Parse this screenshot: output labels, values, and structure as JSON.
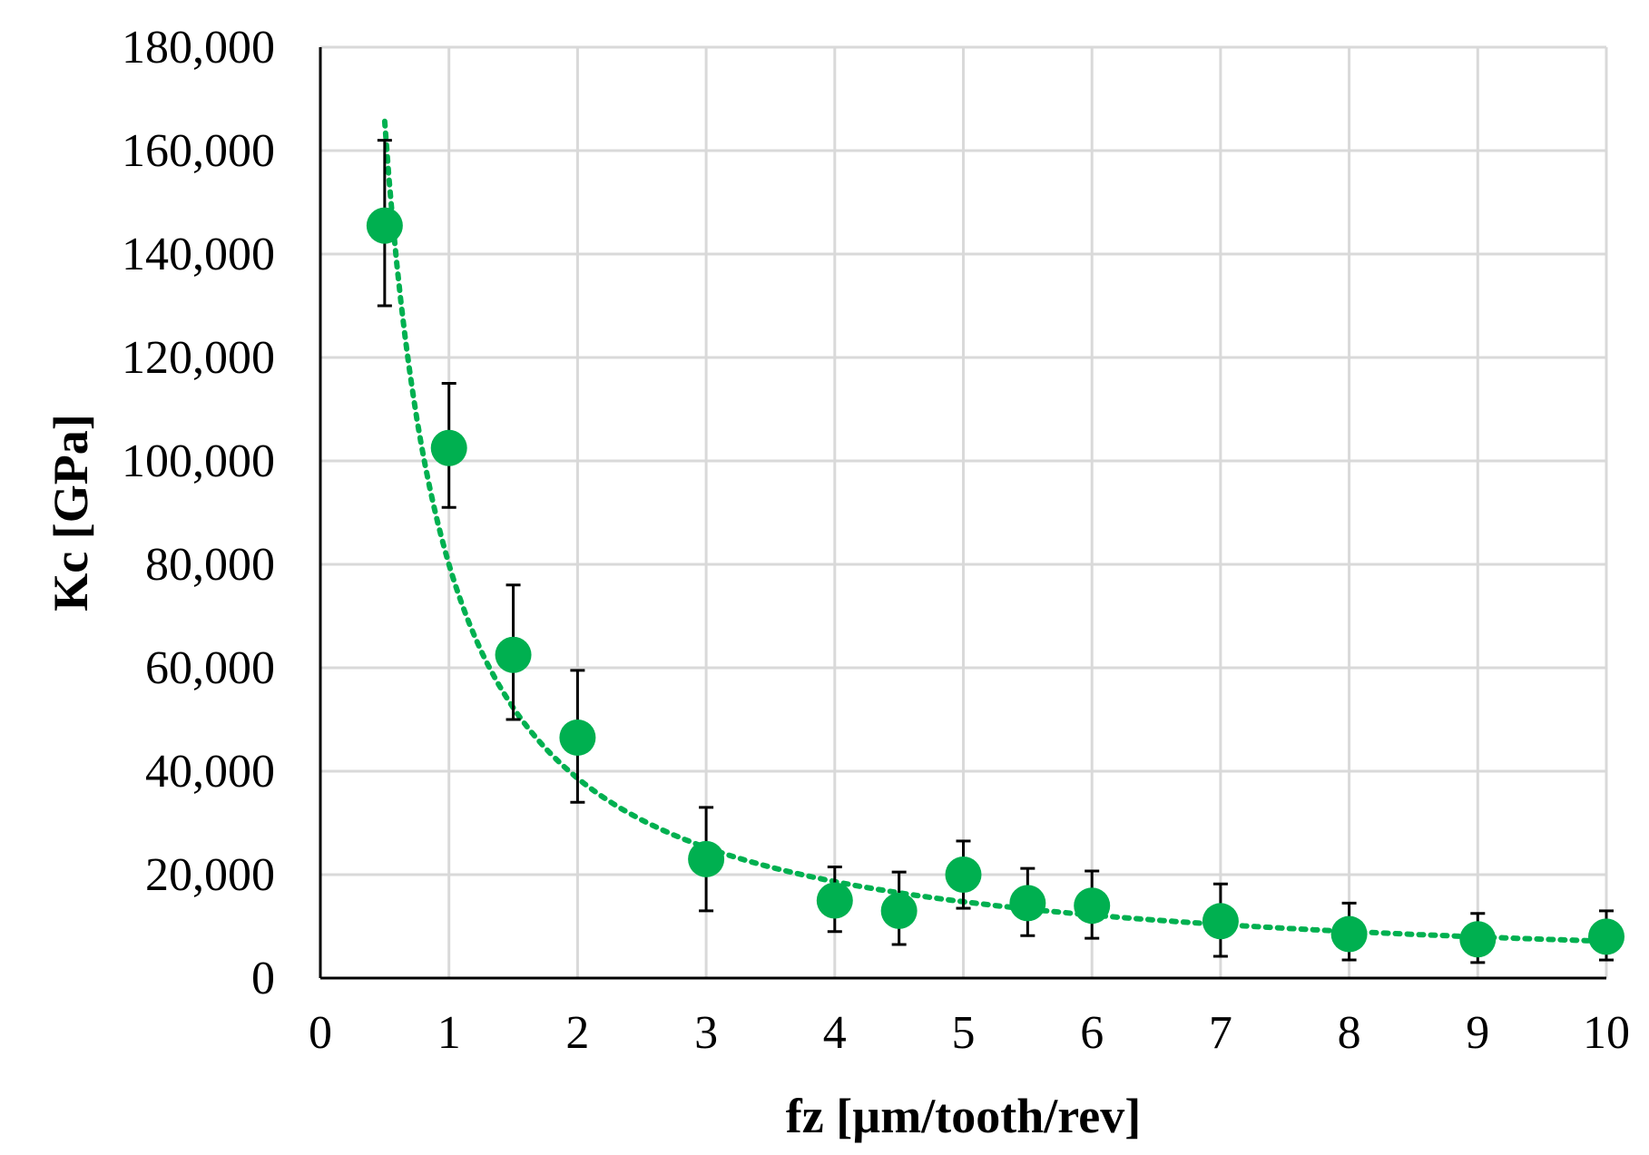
{
  "chart_data": {
    "type": "scatter",
    "xlabel": "fz [µm/tooth/rev]",
    "ylabel": "Kc [GPa]",
    "xlim": [
      0,
      10
    ],
    "ylim": [
      0,
      180000
    ],
    "x_ticks": [
      0,
      1,
      2,
      3,
      4,
      5,
      6,
      7,
      8,
      9,
      10
    ],
    "y_ticks": [
      0,
      20000,
      40000,
      60000,
      80000,
      100000,
      120000,
      140000,
      160000,
      180000
    ],
    "x_tick_labels": [
      "0",
      "1",
      "2",
      "3",
      "4",
      "5",
      "6",
      "7",
      "8",
      "9",
      "10"
    ],
    "y_tick_labels": [
      "0",
      "20,000",
      "40,000",
      "60,000",
      "80,000",
      "100,000",
      "120,000",
      "140,000",
      "160,000",
      "180,000"
    ],
    "grid": true,
    "legend": "none",
    "colors": {
      "marker": "#00b050",
      "trendline": "#00b050",
      "error_bar": "#000000",
      "grid": "#d9d9d9"
    },
    "points": [
      {
        "x": 0.5,
        "y": 145500,
        "err_low": 15500,
        "err_high": 16500
      },
      {
        "x": 1.0,
        "y": 102500,
        "err_low": 11500,
        "err_high": 12500
      },
      {
        "x": 1.5,
        "y": 62500,
        "err_low": 12500,
        "err_high": 13500
      },
      {
        "x": 2.0,
        "y": 46500,
        "err_low": 12500,
        "err_high": 13000
      },
      {
        "x": 3.0,
        "y": 23000,
        "err_low": 10000,
        "err_high": 10000
      },
      {
        "x": 4.0,
        "y": 15000,
        "err_low": 6000,
        "err_high": 6500
      },
      {
        "x": 4.5,
        "y": 13000,
        "err_low": 6500,
        "err_high": 7500
      },
      {
        "x": 5.0,
        "y": 20000,
        "err_low": 6500,
        "err_high": 6500
      },
      {
        "x": 5.5,
        "y": 14500,
        "err_low": 6300,
        "err_high": 6700
      },
      {
        "x": 6.0,
        "y": 14000,
        "err_low": 6300,
        "err_high": 6700
      },
      {
        "x": 7.0,
        "y": 11000,
        "err_low": 6800,
        "err_high": 7200
      },
      {
        "x": 8.0,
        "y": 8500,
        "err_low": 5000,
        "err_high": 6000
      },
      {
        "x": 9.0,
        "y": 7500,
        "err_low": 4500,
        "err_high": 5000
      },
      {
        "x": 10.0,
        "y": 8000,
        "err_low": 4500,
        "err_high": 5000
      }
    ],
    "trendline": {
      "type": "power",
      "a": 80000,
      "b": -1.05,
      "x_start": 0.5,
      "x_end": 10
    }
  }
}
